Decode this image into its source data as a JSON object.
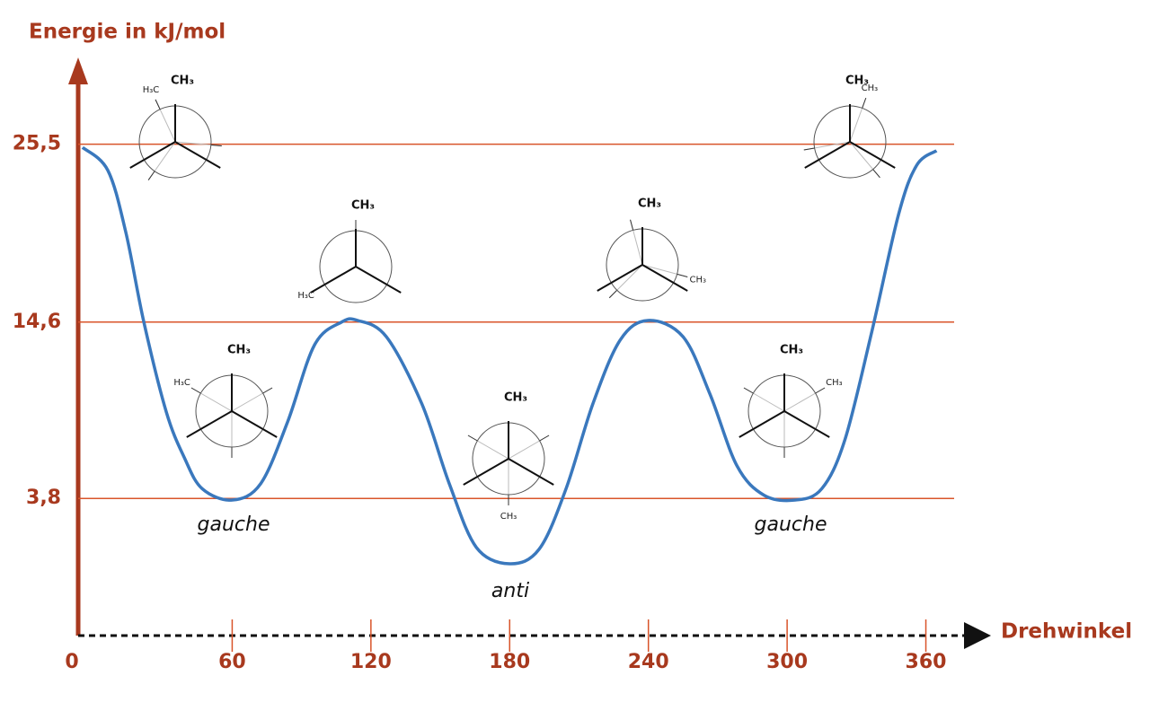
{
  "chart_data": {
    "type": "line",
    "y_label": "Energie in kJ/mol",
    "x_label": "Drehwinkel",
    "xlim": [
      -7,
      380
    ],
    "ylim": [
      -4.6,
      29.6
    ],
    "xticks": [
      0,
      60,
      120,
      180,
      240,
      300,
      360
    ],
    "yticks": [
      {
        "value": 25.5,
        "label": "25,5"
      },
      {
        "value": 14.6,
        "label": "14,6"
      },
      {
        "value": 3.8,
        "label": "3,8"
      }
    ],
    "grid": true,
    "series": [
      {
        "color": "#3a78bd",
        "x": [
          -4.7,
          6.2,
          14,
          21.8,
          31.5,
          39.3,
          47,
          60,
          72.3,
          84,
          95.6,
          107.3,
          114.3,
          126.7,
          142,
          153.9,
          165.6,
          180,
          192.8,
          204.4,
          216,
          227.8,
          239.8,
          255,
          266.6,
          278.3,
          290,
          303.5,
          315,
          325,
          336.6,
          348.2,
          356,
          364.6
        ],
        "values": [
          25.3,
          23.9,
          20.1,
          14.6,
          9.1,
          6.3,
          4.4,
          3.7,
          4.7,
          8.5,
          13.2,
          14.6,
          14.7,
          13.7,
          9.6,
          4.7,
          0.8,
          -0.2,
          0.7,
          4.4,
          9.6,
          13.5,
          14.7,
          13.7,
          10.2,
          5.8,
          4.0,
          3.7,
          4.4,
          7.4,
          14.0,
          21.2,
          24.2,
          25.1
        ]
      }
    ],
    "annotations": [
      "gauche",
      "anti",
      "gauche"
    ],
    "conformers": [
      {
        "front": "CH₃",
        "back": "H₃C"
      },
      {
        "front": "CH₃",
        "back": "H₃C"
      },
      {
        "front": "CH₃",
        "back": "H₃C"
      },
      {
        "front": "CH₃",
        "back": "CH₃"
      },
      {
        "front": "CH₃",
        "back": "CH₃"
      },
      {
        "front": "CH₃",
        "back": "CH₃"
      },
      {
        "front": "CH₃",
        "back": "CH₃"
      }
    ]
  }
}
